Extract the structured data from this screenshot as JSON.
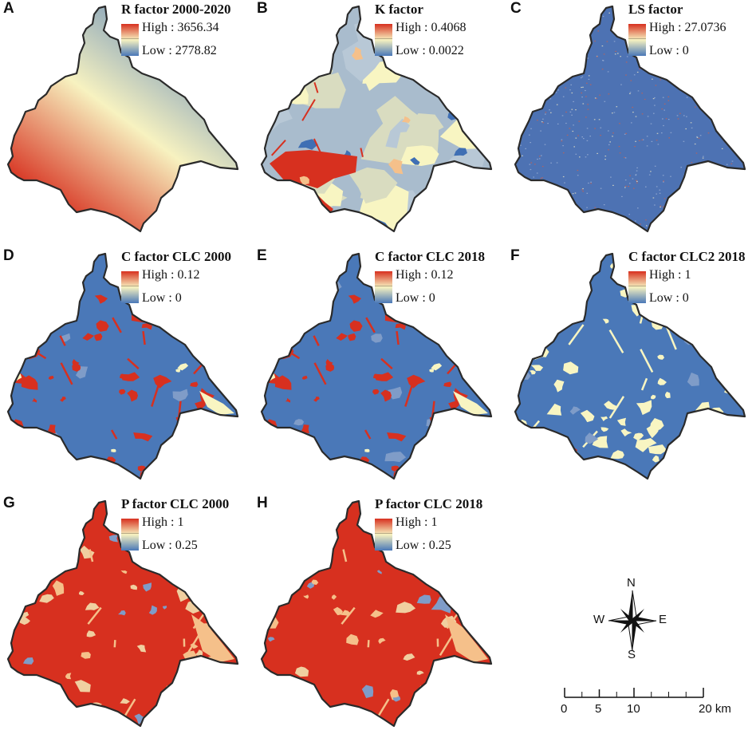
{
  "panels": [
    {
      "label": "A",
      "title": "R factor 2000-2020",
      "high": "High : 3656.34",
      "low": "Low : 2778.82",
      "pattern": "r-gradient"
    },
    {
      "label": "B",
      "title": "K factor",
      "high": "High : 0.4068",
      "low": "Low : 0.0022",
      "pattern": "k-soil"
    },
    {
      "label": "C",
      "title": "LS factor",
      "high": "High : 27.0736",
      "low": "Low : 0",
      "pattern": "ls-noise"
    },
    {
      "label": "D",
      "title": "C factor CLC 2000",
      "high": "High : 0.12",
      "low": "Low : 0",
      "pattern": "c-blue-red"
    },
    {
      "label": "E",
      "title": "C factor CLC 2018",
      "high": "High : 0.12",
      "low": "Low : 0",
      "pattern": "c-blue-red"
    },
    {
      "label": "F",
      "title": "C factor CLC2 2018",
      "high": "High : 1",
      "low": "Low : 0",
      "pattern": "c-blue-cream"
    },
    {
      "label": "G",
      "title": "P factor CLC 2000",
      "high": "High : 1",
      "low": "Low : 0.25",
      "pattern": "p-red"
    },
    {
      "label": "H",
      "title": "P factor CLC 2018",
      "high": "High : 1",
      "low": "Low : 0.25",
      "pattern": "p-red"
    }
  ],
  "compass": {
    "n": "N",
    "s": "S",
    "e": "E",
    "w": "W"
  },
  "scale": {
    "ticks": [
      "0",
      "5",
      "10",
      "20 km"
    ]
  },
  "colors": {
    "high": "#d7301f",
    "mid": "#f7f2c0",
    "low": "#4a78b8",
    "cream": "#f8f5c2",
    "peach": "#f5c08a",
    "steel": "#7f9cc8",
    "grey_blue": "#a9bccd",
    "outline": "#2a2a2a"
  }
}
